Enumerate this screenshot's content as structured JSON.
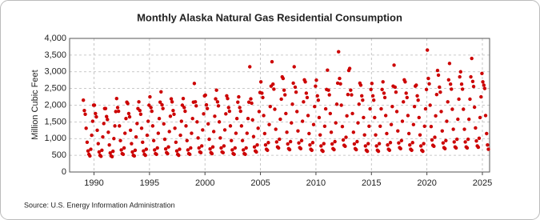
{
  "chart_data": {
    "type": "scatter",
    "title": "Monthly Alaska Natural Gas Residential Consumption",
    "y_label": "Million Cubic Feet",
    "source": "Source: U.S. Energy Information Administration",
    "xlim": [
      1987.8,
      2025.65
    ],
    "xticks": [
      1990,
      1995,
      2000,
      2005,
      2010,
      2015,
      2020,
      2025
    ],
    "ylim": [
      0,
      4000
    ],
    "yticks": [
      0,
      500,
      {
        "value": 1000,
        "label": "1,000"
      },
      {
        "value": 1500,
        "label": "1,500"
      },
      {
        "value": 2000,
        "label": "2,000"
      },
      {
        "value": 2500,
        "label": "2,500"
      },
      {
        "value": 3000,
        "label": "3,000"
      },
      {
        "value": 3500,
        "label": "3,500"
      },
      {
        "value": 4000,
        "label": "4,000"
      }
    ],
    "grid": true,
    "series": [
      {
        "color": "#cc0000",
        "x": [
          1989.04,
          1989.13,
          1989.21,
          1989.29,
          1989.38,
          1989.46,
          1989.54,
          1989.63,
          1989.71,
          1989.79,
          1989.88,
          1989.96,
          1990.04,
          1990.13,
          1990.21,
          1990.29,
          1990.38,
          1990.46,
          1990.54,
          1990.63,
          1990.71,
          1990.79,
          1990.88,
          1990.96,
          1991.04,
          1991.13,
          1991.21,
          1991.29,
          1991.38,
          1991.46,
          1991.54,
          1991.63,
          1991.71,
          1991.79,
          1991.88,
          1991.96,
          1992.04,
          1992.13,
          1992.21,
          1992.29,
          1992.38,
          1992.46,
          1992.54,
          1992.63,
          1992.71,
          1992.79,
          1992.88,
          1992.96,
          1993.04,
          1993.13,
          1993.21,
          1993.29,
          1993.38,
          1993.46,
          1993.54,
          1993.63,
          1993.71,
          1993.79,
          1993.88,
          1993.96,
          1994.04,
          1994.13,
          1994.21,
          1994.29,
          1994.38,
          1994.46,
          1994.54,
          1994.63,
          1994.71,
          1994.79,
          1994.88,
          1994.96,
          1995.04,
          1995.13,
          1995.21,
          1995.29,
          1995.38,
          1995.46,
          1995.54,
          1995.63,
          1995.71,
          1995.79,
          1995.88,
          1995.96,
          1996.04,
          1996.13,
          1996.21,
          1996.29,
          1996.38,
          1996.46,
          1996.54,
          1996.63,
          1996.71,
          1996.79,
          1996.88,
          1996.96,
          1997.04,
          1997.13,
          1997.21,
          1997.29,
          1997.38,
          1997.46,
          1997.54,
          1997.63,
          1997.71,
          1997.79,
          1997.88,
          1997.96,
          1998.04,
          1998.13,
          1998.21,
          1998.29,
          1998.38,
          1998.46,
          1998.54,
          1998.63,
          1998.71,
          1998.79,
          1998.88,
          1998.96,
          1999.04,
          1999.13,
          1999.21,
          1999.29,
          1999.38,
          1999.46,
          1999.54,
          1999.63,
          1999.71,
          1999.79,
          1999.88,
          1999.96,
          2000.04,
          2000.13,
          2000.21,
          2000.29,
          2000.38,
          2000.46,
          2000.54,
          2000.63,
          2000.71,
          2000.79,
          2000.88,
          2000.96,
          2001.04,
          2001.13,
          2001.21,
          2001.29,
          2001.38,
          2001.46,
          2001.54,
          2001.63,
          2001.71,
          2001.79,
          2001.88,
          2001.96,
          2002.04,
          2002.13,
          2002.21,
          2002.29,
          2002.38,
          2002.46,
          2002.54,
          2002.63,
          2002.71,
          2002.79,
          2002.88,
          2002.96,
          2003.04,
          2003.13,
          2003.21,
          2003.29,
          2003.38,
          2003.46,
          2003.54,
          2003.63,
          2003.71,
          2003.79,
          2003.88,
          2003.96,
          2004.04,
          2004.13,
          2004.21,
          2004.29,
          2004.38,
          2004.46,
          2004.54,
          2004.63,
          2004.71,
          2004.79,
          2004.88,
          2004.96,
          2005.04,
          2005.13,
          2005.21,
          2005.29,
          2005.38,
          2005.46,
          2005.54,
          2005.63,
          2005.71,
          2005.79,
          2005.88,
          2005.96,
          2006.04,
          2006.13,
          2006.21,
          2006.29,
          2006.38,
          2006.46,
          2006.54,
          2006.63,
          2006.71,
          2006.79,
          2006.88,
          2006.96,
          2007.04,
          2007.13,
          2007.21,
          2007.29,
          2007.38,
          2007.46,
          2007.54,
          2007.63,
          2007.71,
          2007.79,
          2007.88,
          2007.96,
          2008.04,
          2008.13,
          2008.21,
          2008.29,
          2008.38,
          2008.46,
          2008.54,
          2008.63,
          2008.71,
          2008.79,
          2008.88,
          2008.96,
          2009.04,
          2009.13,
          2009.21,
          2009.29,
          2009.38,
          2009.46,
          2009.54,
          2009.63,
          2009.71,
          2009.79,
          2009.88,
          2009.96,
          2010.04,
          2010.13,
          2010.21,
          2010.29,
          2010.38,
          2010.46,
          2010.54,
          2010.63,
          2010.71,
          2010.79,
          2010.88,
          2010.96,
          2011.04,
          2011.13,
          2011.21,
          2011.29,
          2011.38,
          2011.46,
          2011.54,
          2011.63,
          2011.71,
          2011.79,
          2011.88,
          2011.96,
          2012.04,
          2012.13,
          2012.21,
          2012.29,
          2012.38,
          2012.46,
          2012.54,
          2012.63,
          2012.71,
          2012.79,
          2012.88,
          2012.96,
          2013.04,
          2013.13,
          2013.21,
          2013.29,
          2013.38,
          2013.46,
          2013.54,
          2013.63,
          2013.71,
          2013.79,
          2013.88,
          2013.96,
          2014.04,
          2014.13,
          2014.21,
          2014.29,
          2014.38,
          2014.46,
          2014.54,
          2014.63,
          2014.71,
          2014.79,
          2014.88,
          2014.96,
          2015.04,
          2015.13,
          2015.21,
          2015.29,
          2015.38,
          2015.46,
          2015.54,
          2015.63,
          2015.71,
          2015.79,
          2015.88,
          2015.96,
          2016.04,
          2016.13,
          2016.21,
          2016.29,
          2016.38,
          2016.46,
          2016.54,
          2016.63,
          2016.71,
          2016.79,
          2016.88,
          2016.96,
          2017.04,
          2017.13,
          2017.21,
          2017.29,
          2017.38,
          2017.46,
          2017.54,
          2017.63,
          2017.71,
          2017.79,
          2017.88,
          2017.96,
          2018.04,
          2018.13,
          2018.21,
          2018.29,
          2018.38,
          2018.46,
          2018.54,
          2018.63,
          2018.71,
          2018.79,
          2018.88,
          2018.96,
          2019.04,
          2019.13,
          2019.21,
          2019.29,
          2019.38,
          2019.46,
          2019.54,
          2019.63,
          2019.71,
          2019.79,
          2019.88,
          2019.96,
          2020.04,
          2020.13,
          2020.21,
          2020.29,
          2020.38,
          2020.46,
          2020.54,
          2020.63,
          2020.71,
          2020.79,
          2020.88,
          2020.96,
          2021.04,
          2021.13,
          2021.21,
          2021.29,
          2021.38,
          2021.46,
          2021.54,
          2021.63,
          2021.71,
          2021.79,
          2021.88,
          2021.96,
          2022.04,
          2022.13,
          2022.21,
          2022.29,
          2022.38,
          2022.46,
          2022.54,
          2022.63,
          2022.71,
          2022.79,
          2022.88,
          2022.96,
          2023.04,
          2023.13,
          2023.21,
          2023.29,
          2023.38,
          2023.46,
          2023.54,
          2023.63,
          2023.71,
          2023.79,
          2023.88,
          2023.96,
          2024.04,
          2024.13,
          2024.21,
          2024.29,
          2024.38,
          2024.46,
          2024.54,
          2024.63,
          2024.71,
          2024.79,
          2024.88,
          2024.96,
          2025.04,
          2025.13,
          2025.21,
          2025.29,
          2025.38,
          2025.46,
          2025.54
        ],
        "values": [
          2150,
          1840,
          1730,
          1310,
          890,
          630,
          530,
          480,
          680,
          1100,
          1520,
          2000,
          2000,
          1750,
          1650,
          1250,
          850,
          600,
          500,
          470,
          650,
          1050,
          1450,
          1900,
          1900,
          1660,
          1570,
          1190,
          810,
          570,
          480,
          460,
          620,
          1000,
          1380,
          1810,
          2200,
          1930,
          1820,
          1380,
          940,
          660,
          550,
          530,
          720,
          1160,
          1600,
          2090,
          2050,
          1750,
          1650,
          1250,
          850,
          600,
          500,
          480,
          650,
          1050,
          1450,
          1900,
          2100,
          1840,
          1730,
          1310,
          890,
          630,
          530,
          500,
          680,
          1100,
          1520,
          2000,
          2250,
          1930,
          1820,
          1380,
          940,
          660,
          550,
          530,
          720,
          1160,
          1600,
          2090,
          2400,
          2010,
          1900,
          1440,
          980,
          690,
          580,
          550,
          750,
          1210,
          1670,
          2190,
          2100,
          1840,
          1730,
          1310,
          890,
          630,
          530,
          500,
          680,
          1100,
          1520,
          2000,
          2200,
          1930,
          1820,
          1380,
          940,
          660,
          550,
          530,
          720,
          1160,
          1600,
          2090,
          2650,
          2100,
          1980,
          1500,
          1020,
          720,
          600,
          580,
          780,
          1260,
          1740,
          2280,
          2300,
          2010,
          1900,
          1440,
          980,
          690,
          580,
          550,
          750,
          1210,
          1670,
          2190,
          2450,
          2100,
          1980,
          1500,
          1020,
          720,
          600,
          580,
          780,
          1260,
          1740,
          2280,
          2200,
          1930,
          1820,
          1380,
          940,
          660,
          550,
          530,
          720,
          1160,
          1600,
          2090,
          2250,
          1930,
          1820,
          1380,
          940,
          660,
          550,
          530,
          720,
          1160,
          1600,
          2090,
          3150,
          2190,
          2060,
          1560,
          1060,
          750,
          630,
          600,
          810,
          1310,
          1810,
          2380,
          2700,
          2360,
          2230,
          1690,
          1150,
          810,
          680,
          650,
          880,
          1420,
          1960,
          2570,
          3300,
          2630,
          2480,
          1880,
          1280,
          900,
          750,
          720,
          980,
          1580,
          2180,
          2850,
          2800,
          2450,
          2310,
          1750,
          1190,
          840,
          700,
          670,
          910,
          1470,
          2030,
          2660,
          3150,
          2540,
          2390,
          1810,
          1230,
          870,
          730,
          700,
          940,
          1520,
          2100,
          2760,
          2700,
          2360,
          2230,
          1690,
          1150,
          810,
          680,
          650,
          880,
          1420,
          1960,
          2570,
          2750,
          2280,
          2150,
          1630,
          1110,
          780,
          650,
          620,
          850,
          1370,
          1890,
          2470,
          3050,
          2450,
          2310,
          1750,
          1190,
          840,
          700,
          670,
          910,
          1470,
          2030,
          2660,
          3600,
          2800,
          2640,
          2000,
          1360,
          960,
          800,
          770,
          1040,
          1680,
          2320,
          3040,
          3100,
          2450,
          2310,
          1750,
          1190,
          840,
          700,
          670,
          910,
          1470,
          2030,
          2660,
          2600,
          2280,
          2150,
          1630,
          1110,
          780,
          650,
          620,
          850,
          1370,
          1890,
          2470,
          2650,
          2280,
          2150,
          1630,
          1110,
          780,
          650,
          620,
          850,
          1370,
          1890,
          2470,
          2700,
          2360,
          2230,
          1690,
          1150,
          810,
          680,
          650,
          880,
          1420,
          1960,
          2570,
          3200,
          2540,
          2390,
          1810,
          1230,
          870,
          730,
          700,
          940,
          1520,
          2100,
          2760,
          2700,
          2360,
          2230,
          1690,
          1150,
          810,
          680,
          650,
          880,
          1420,
          1960,
          2570,
          2600,
          2280,
          2150,
          1630,
          1110,
          780,
          650,
          620,
          850,
          1370,
          1890,
          2470,
          3650,
          2800,
          2640,
          2000,
          1360,
          960,
          800,
          770,
          1040,
          1680,
          2320,
          3040,
          2900,
          2540,
          2390,
          1810,
          1230,
          870,
          730,
          700,
          940,
          1520,
          2100,
          2760,
          3250,
          2630,
          2480,
          1880,
          1280,
          900,
          750,
          720,
          980,
          1580,
          2180,
          2850,
          3000,
          2630,
          2480,
          1880,
          1280,
          900,
          750,
          720,
          980,
          1580,
          2180,
          2850,
          3400,
          2710,
          2560,
          1940,
          1320,
          930,
          780,
          740,
          1010,
          1630,
          2250,
          2950,
          2700,
          2600,
          2500,
          1690,
          1150,
          810,
          680
        ]
      }
    ]
  }
}
